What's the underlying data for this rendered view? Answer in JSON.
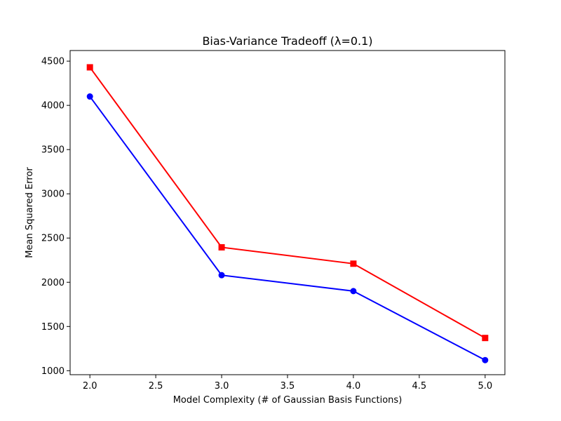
{
  "chart_data": {
    "type": "line",
    "title": "Bias-Variance Tradeoff (λ=0.1)",
    "xlabel": "Model Complexity (# of Gaussian Basis Functions)",
    "ylabel": "Mean Squared Error",
    "x": [
      2.0,
      3.0,
      4.0,
      5.0
    ],
    "xlim": [
      1.85,
      5.15
    ],
    "ylim": [
      955,
      4620
    ],
    "xticks": [
      "2.0",
      "2.5",
      "3.0",
      "3.5",
      "4.0",
      "4.5",
      "5.0"
    ],
    "yticks": [
      "1000",
      "1500",
      "2000",
      "2500",
      "3000",
      "3500",
      "4000",
      "4500"
    ],
    "grid": false,
    "series": [
      {
        "values": [
          4430,
          2395,
          2210,
          1370
        ],
        "color": "#ff0000",
        "marker": "square"
      },
      {
        "values": [
          4100,
          2080,
          1900,
          1120
        ],
        "color": "#0000ff",
        "marker": "circle"
      }
    ]
  }
}
